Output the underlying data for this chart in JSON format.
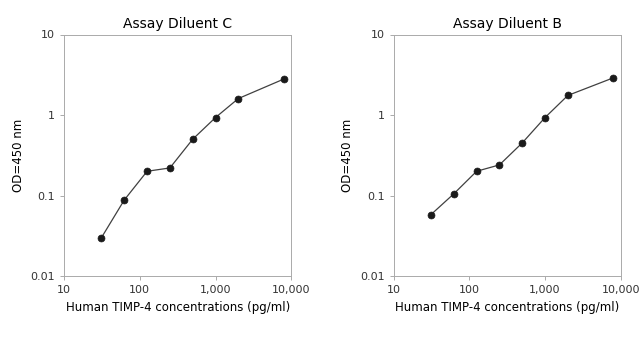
{
  "chart1": {
    "title": "Assay Diluent C",
    "x": [
      31.25,
      62.5,
      125,
      250,
      500,
      1000,
      2000,
      8000
    ],
    "y": [
      0.03,
      0.088,
      0.2,
      0.22,
      0.5,
      0.93,
      1.6,
      2.8
    ],
    "xlabel": "Human TIMP-4 concentrations (pg/ml)",
    "ylabel": "OD=450 nm",
    "xlim": [
      20,
      10000
    ],
    "ylim": [
      0.01,
      10
    ]
  },
  "chart2": {
    "title": "Assay Diluent B",
    "x": [
      31.25,
      62.5,
      125,
      250,
      500,
      1000,
      2000,
      8000
    ],
    "y": [
      0.058,
      0.105,
      0.2,
      0.24,
      0.45,
      0.93,
      1.75,
      2.9
    ],
    "xlabel": "Human TIMP-4 concentrations (pg/ml)",
    "ylabel": "OD=450 nm",
    "xlim": [
      20,
      10000
    ],
    "ylim": [
      0.01,
      10
    ]
  },
  "line_color": "#404040",
  "marker": "o",
  "marker_color": "#1a1a1a",
  "marker_size": 5,
  "bg_color": "#ffffff",
  "title_fontsize": 10,
  "label_fontsize": 8.5,
  "tick_fontsize": 8,
  "x_tick_vals": [
    10,
    100,
    1000,
    10000
  ],
  "x_tick_labels": [
    "10",
    "100",
    "1,000",
    "10,000"
  ],
  "y_tick_vals": [
    0.01,
    0.1,
    1,
    10
  ],
  "y_tick_labels": [
    "0.01",
    "0.1",
    "1",
    "10"
  ]
}
